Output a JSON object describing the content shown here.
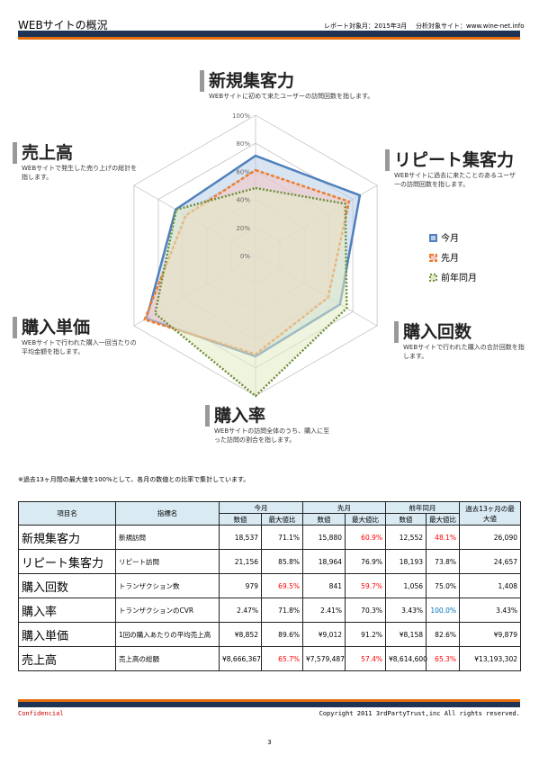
{
  "header": {
    "title": "WEBサイトの概況",
    "report_month": "レポート対象月：2015年3月",
    "site": "分析対象サイト：www.wine-net.info"
  },
  "chart_data": {
    "type": "radar",
    "categories": [
      "新規集客力",
      "リピート集客力",
      "購入回数",
      "購入率",
      "購入単価",
      "売上高"
    ],
    "descriptions": [
      "WEBサイトに初めて来たユーザーの訪問回数を指します。",
      "WEBサイトに過去に来たことのあるユーザーの訪問回数を指します。",
      "WEBサイトで行われた購入の合計回数を指します。",
      "WEBサイトの訪問全体のうち、購入に至った訪問の割合を指します。",
      "WEBサイトで行われた購入一回当たりの平均金額を指します。",
      "WEBサイトで発生した売り上げの総計を指します。"
    ],
    "series": [
      {
        "name": "今月",
        "color": "#4f81bd",
        "fill": "#b9cde8",
        "line_style": "solid",
        "values": [
          71.1,
          85.8,
          69.5,
          71.8,
          89.6,
          65.7
        ],
        "value_labels": [
          "71.1%",
          "85.8%",
          "69.5%",
          "71.8%",
          "89.6%",
          "65.7%"
        ]
      },
      {
        "name": "先月",
        "color": "#ed7d31",
        "fill": "#f4c7c3",
        "line_style": "dashed",
        "values": [
          60.9,
          76.9,
          59.7,
          70.3,
          91.2,
          57.4
        ],
        "value_labels": [
          "60.9%",
          "76.9%",
          "59.7%",
          "70.3%",
          "91.2%",
          "57.4%"
        ]
      },
      {
        "name": "前年同月",
        "color": "#6e8f3a",
        "fill": "#e2ebc4",
        "line_style": "dotted",
        "values": [
          48.1,
          73.8,
          75.0,
          100.0,
          82.6,
          65.3
        ],
        "value_labels": [
          "48.1%",
          "73.8%",
          "75.0%",
          "100.0%",
          "82.6%",
          "65.3%"
        ]
      }
    ],
    "rlim": [
      0,
      100
    ],
    "rticks": [
      {
        "value": 0,
        "label": "0%"
      },
      {
        "value": 20,
        "label": "20%"
      },
      {
        "value": 40,
        "label": "40%"
      },
      {
        "value": 60,
        "label": "60%"
      },
      {
        "value": 80,
        "label": "80%"
      },
      {
        "value": 100,
        "label": "100%"
      }
    ],
    "grid": true
  },
  "note": "※過去13ヶ月間の最大値を100%として、各月の数値との比率で集計しています。",
  "table": {
    "headers": {
      "item": "項目名",
      "metric": "指標名",
      "periods": [
        "今月",
        "先月",
        "前年同月"
      ],
      "count": "数値",
      "ratio": "最大値比",
      "max": "過去13ヶ月の最大値"
    },
    "rows": [
      {
        "metric": "新規訪問",
        "counts": [
          "18,537",
          "15,880",
          "12,552"
        ],
        "max": "26,090"
      },
      {
        "metric": "リピート訪問",
        "counts": [
          "21,156",
          "18,964",
          "18,193"
        ],
        "max": "24,657"
      },
      {
        "metric": "トランザクション数",
        "counts": [
          "979",
          "841",
          "1,056"
        ],
        "max": "1,408"
      },
      {
        "metric": "トランザクションのCVR",
        "counts": [
          "2.47%",
          "2.41%",
          "3.43%"
        ],
        "max": "3.43%"
      },
      {
        "metric": "1回の購入あたりの平均売上高",
        "counts": [
          "¥8,852",
          "¥9,012",
          "¥8,158"
        ],
        "max": "¥9,879"
      },
      {
        "metric": "売上高の総額",
        "counts": [
          "¥8,666,367",
          "¥7,579,487",
          "¥8,614,600"
        ],
        "max": "¥13,193,302"
      }
    ],
    "highlight": {
      "below": 70,
      "low_color": "#ff0000",
      "full": 100,
      "full_color": "#0070c0"
    }
  },
  "footer": {
    "confidential": "Confidencial",
    "copyright": "Copyright 2011 3rdPartyTrust,inc All rights reserved.",
    "page": "3"
  }
}
